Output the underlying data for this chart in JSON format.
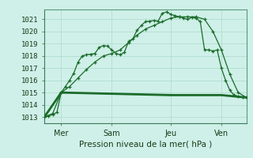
{
  "title": "",
  "xlabel": "Pression niveau de la mer( hPa )",
  "ylabel": "",
  "bg_color": "#cff0e8",
  "grid_color": "#b0ddd0",
  "line_color": "#1a6b2a",
  "ylim": [
    1012.5,
    1021.8
  ],
  "xlim": [
    0,
    96
  ],
  "xticks": [
    8,
    32,
    60,
    84
  ],
  "xticklabels": [
    "Mer",
    "Sam",
    "Jeu",
    "Ven"
  ],
  "yticks": [
    1013,
    1014,
    1015,
    1016,
    1017,
    1018,
    1019,
    1020,
    1021
  ],
  "line1_x": [
    0,
    2,
    4,
    6,
    8,
    10,
    12,
    14,
    16,
    18,
    20,
    22,
    24,
    26,
    28,
    30,
    32,
    34,
    36,
    38,
    40,
    42,
    44,
    46,
    48,
    50,
    52,
    54,
    56,
    58,
    60,
    62,
    64,
    66,
    68,
    70,
    72,
    74,
    76,
    78,
    80,
    82,
    84,
    86,
    88,
    90,
    92,
    94,
    96
  ],
  "line1_y": [
    1013.0,
    1013.1,
    1013.2,
    1013.4,
    1015.0,
    1015.5,
    1016.0,
    1016.6,
    1017.5,
    1018.0,
    1018.1,
    1018.15,
    1018.2,
    1018.7,
    1018.85,
    1018.8,
    1018.5,
    1018.2,
    1018.1,
    1018.3,
    1019.2,
    1019.4,
    1020.1,
    1020.5,
    1020.8,
    1020.85,
    1020.9,
    1020.85,
    1021.5,
    1021.6,
    1021.4,
    1021.3,
    1021.2,
    1021.1,
    1021.0,
    1021.15,
    1021.1,
    1020.8,
    1018.5,
    1018.5,
    1018.4,
    1018.5,
    1017.0,
    1016.0,
    1015.2,
    1014.8,
    1014.7,
    1014.6,
    1014.6
  ],
  "line2_x": [
    0,
    4,
    8,
    12,
    16,
    20,
    24,
    28,
    32,
    36,
    40,
    44,
    48,
    52,
    56,
    60,
    64,
    68,
    72,
    76,
    80,
    84,
    88,
    92,
    96
  ],
  "line2_y": [
    1013.0,
    1013.3,
    1015.0,
    1015.5,
    1016.2,
    1016.9,
    1017.5,
    1018.0,
    1018.2,
    1018.5,
    1019.1,
    1019.7,
    1020.2,
    1020.5,
    1020.8,
    1021.1,
    1021.2,
    1021.2,
    1021.2,
    1021.0,
    1020.0,
    1018.5,
    1016.5,
    1015.0,
    1014.6
  ],
  "line3_x": [
    0,
    8,
    10,
    60,
    68,
    84,
    96
  ],
  "line3_y": [
    1013.0,
    1015.0,
    1015.0,
    1014.8,
    1014.8,
    1014.8,
    1014.6
  ],
  "marker": "+"
}
